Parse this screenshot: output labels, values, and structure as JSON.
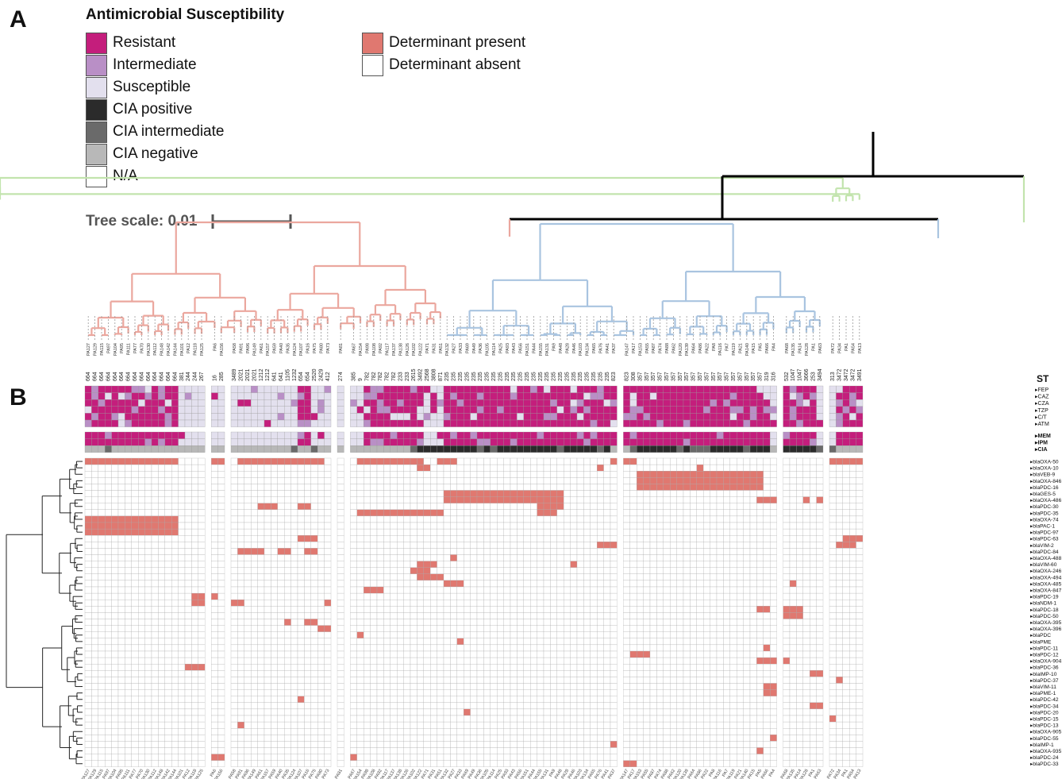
{
  "panels": {
    "a": "A",
    "b": "B"
  },
  "legend": {
    "title": "Antimicrobial Susceptibility",
    "items_left": [
      {
        "label": "Resistant",
        "color": "#c41e7c"
      },
      {
        "label": "Intermediate",
        "color": "#b98fc6"
      },
      {
        "label": "Susceptible",
        "color": "#e3e0ee"
      },
      {
        "label": "CIA positive",
        "color": "#2b2b2b"
      },
      {
        "label": "CIA intermediate",
        "color": "#6a6a6a"
      },
      {
        "label": "CIA negative",
        "color": "#b8b8b8"
      },
      {
        "label": "N/A",
        "color": "#ffffff"
      }
    ],
    "items_right": [
      {
        "label": "Determinant present",
        "color": "#e07870"
      },
      {
        "label": "Determinant absent",
        "color": "#ffffff"
      }
    ]
  },
  "tree_scale": {
    "label": "Tree scale: 0.01"
  },
  "clade_colors": {
    "red": "#eba79e",
    "blue": "#a9c4e0",
    "green": "#c2e4ad"
  },
  "st_header": "ST",
  "st_values": [
    "664",
    "664",
    "664",
    "664",
    "664",
    "664",
    "664",
    "664",
    "664",
    "664",
    "664",
    "664",
    "664",
    "664",
    "381",
    "244",
    "244",
    "267",
    "16",
    "285",
    "3489",
    "2021",
    "2021",
    "2021",
    "1212",
    "1212",
    "641",
    "641",
    "1105",
    "1232",
    "654",
    "654",
    "2520",
    "2429",
    "412",
    "274",
    "385",
    "9",
    "782",
    "782",
    "782",
    "782",
    "782",
    "233",
    "233",
    "2615",
    "3492",
    "2568",
    "3808",
    "871",
    "235",
    "235",
    "235",
    "235",
    "235",
    "235",
    "235",
    "235",
    "235",
    "235",
    "235",
    "235",
    "235",
    "235",
    "235",
    "235",
    "235",
    "235",
    "235",
    "235",
    "235",
    "235",
    "235",
    "235",
    "235",
    "823",
    "823",
    "308",
    "357",
    "357",
    "357",
    "357",
    "357",
    "357",
    "357",
    "357",
    "357",
    "357",
    "357",
    "357",
    "357",
    "357",
    "357",
    "357",
    "357",
    "357",
    "357",
    "319",
    "316",
    "532",
    "1047",
    "1047",
    "3666",
    "253",
    "3494",
    "313",
    "3472",
    "3472",
    "3472",
    "3491"
  ],
  "antibiotics": [
    "FEP",
    "CAZ",
    "CZA",
    "TZP",
    "C/T",
    "ATM"
  ],
  "antibiotics2": [
    "MEM",
    "IPM",
    "CIA"
  ],
  "genes": [
    "blaOXA-50",
    "blaOXA-10",
    "blaVEB-9",
    "blaOXA-846",
    "blaPDC-16",
    "blaGES-5",
    "blaOXA-486",
    "blaPDC-30",
    "blaPDC-35",
    "blaOXA-74",
    "blaPAC-1",
    "blaPDC-97",
    "blaPDC-63",
    "blaVIM-2",
    "blaPDC-84",
    "blaOXA-488",
    "blaVIM-60",
    "blaOXA-246",
    "blaOXA-494",
    "blaOXA-485",
    "blaOXA-847",
    "blaPDC-19",
    "blaNDM-1",
    "blaPDC-18",
    "blaPDC-50",
    "blaOXA-395",
    "blaOXA-396",
    "blaPDC",
    "blaPME",
    "blaPDC-11",
    "blaPDC-12",
    "blaOXA-904",
    "blaPDC-36",
    "blaIMP-10",
    "blaPDC-37",
    "blaVIM-11",
    "blaPME-1",
    "blaPDC-42",
    "blaPDC-34",
    "blaPDC-20",
    "blaPDC-15",
    "blaPDC-13",
    "blaOXA-905",
    "blaPDC-55",
    "blaIMP-1",
    "blaOXA-935",
    "blaPDC-24",
    "blaPDC-33"
  ],
  "isolates": [
    "PA127",
    "PA129",
    "PA115",
    "PA97",
    "PA104",
    "PA95",
    "PA111",
    "PA77",
    "PA70",
    "PA130",
    "PA112",
    "PA148",
    "PA142",
    "PA144",
    "PA101",
    "PA12",
    "PA118",
    "PA125",
    "PA6",
    "PA156",
    "PA58",
    "PA91",
    "PA96",
    "PA149",
    "PA61",
    "PA157",
    "PA59",
    "PA40",
    "PA35",
    "PA124",
    "PA107",
    "PA16",
    "PA75",
    "PA80",
    "PA73",
    "PA81",
    "PA67",
    "PA154",
    "PA98",
    "PA108",
    "PA92",
    "PA117",
    "PA137",
    "PA138",
    "PA126",
    "PA102",
    "PA122",
    "PA71",
    "PA31",
    "PA51",
    "PA132",
    "PA27",
    "PA33",
    "PA69",
    "PA49",
    "PA36",
    "PA105",
    "PA114",
    "PA25",
    "PA93",
    "PA43",
    "PA56",
    "PA151",
    "PA44",
    "PA155",
    "PA131",
    "PA9",
    "PA48",
    "PA28",
    "PA46",
    "PA103",
    "PA134",
    "PA65",
    "PA76",
    "PA41",
    "PA37",
    "PA147",
    "PA17",
    "PA153",
    "PA55",
    "PA87",
    "PA74",
    "PA88",
    "PA62",
    "PA120",
    "PA139",
    "PA64",
    "PA86",
    "PA22",
    "PA8",
    "PA116",
    "PA7",
    "PA119",
    "PA21",
    "PA140",
    "PA15",
    "PA5",
    "PA66",
    "PA4",
    "PA68",
    "PA135",
    "PA14",
    "PA128",
    "PA1",
    "PA63",
    "PA72",
    "PA34",
    "PA1",
    "PA54",
    "PA13"
  ]
}
